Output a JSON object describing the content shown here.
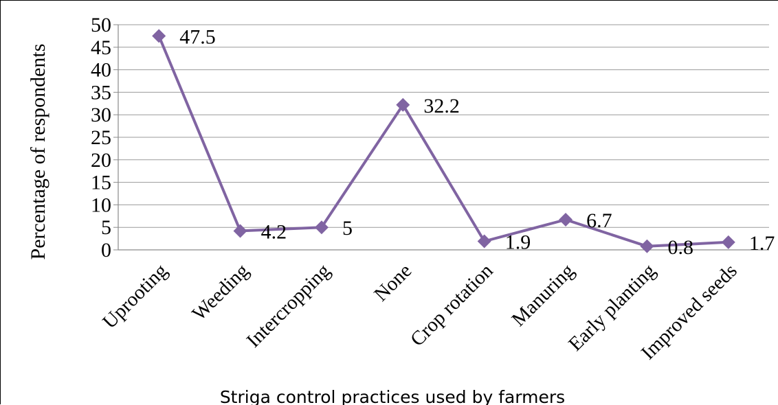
{
  "chart_data": {
    "type": "line",
    "title": "",
    "xlabel": "Striga control practices used by farmers",
    "ylabel": "Percentage of respondents",
    "categories": [
      "Uprooting",
      "Weeding",
      "Intercropping",
      "None",
      "Crop rotation",
      "Manuring",
      "Early planting",
      "Improved seeds"
    ],
    "series": [
      {
        "values": [
          47.5,
          4.2,
          5,
          32.2,
          1.9,
          6.7,
          0.8,
          1.7
        ]
      }
    ],
    "data_labels": [
      "47.5",
      "4.2",
      "5",
      "32.2",
      "1.9",
      "6.7",
      "0.8",
      "1.7"
    ],
    "yticks": [
      0,
      5,
      10,
      15,
      20,
      25,
      30,
      35,
      40,
      45,
      50
    ],
    "ylim": [
      0,
      50
    ],
    "grid": true,
    "line_color": "#8064A2",
    "marker": "diamond"
  }
}
